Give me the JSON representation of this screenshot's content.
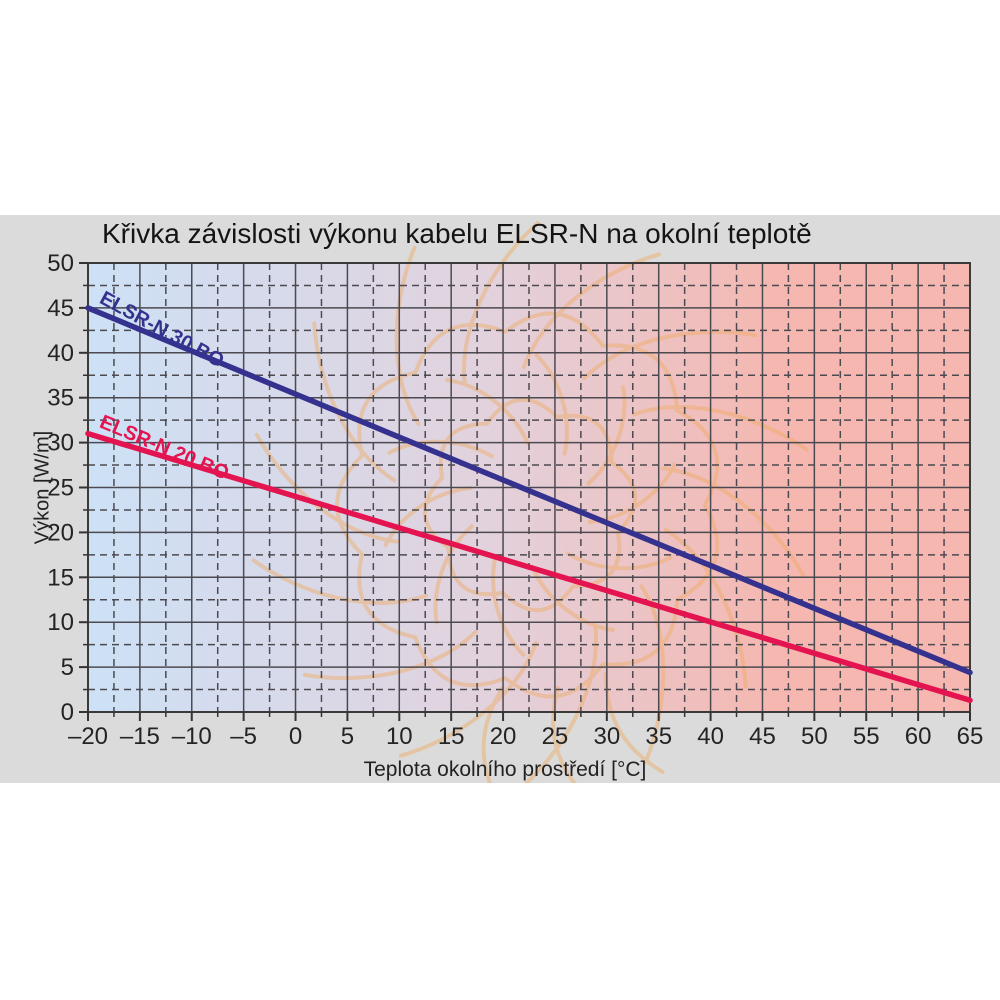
{
  "page": {
    "background": "#ffffff",
    "panel_background": "#dbdbdb"
  },
  "chart_data": {
    "type": "line",
    "title": "Křivka závislosti výkonu kabelu ELSR-N na okolní teplotě",
    "xlabel": "Teplota okolního prostředí [°C]",
    "ylabel": "Výkon [W/m]",
    "xlim": [
      -20,
      65
    ],
    "ylim": [
      0,
      50
    ],
    "x_ticks": [
      -20,
      -15,
      -10,
      -5,
      0,
      5,
      10,
      15,
      20,
      25,
      30,
      35,
      40,
      45,
      50,
      55,
      60,
      65
    ],
    "y_ticks": [
      0,
      5,
      10,
      15,
      20,
      25,
      30,
      35,
      40,
      45,
      50
    ],
    "minor_step": 2.5,
    "grid": "major solid + minor dashed, dark gray on gradient background",
    "legend_position": "inline rotated labels on curves",
    "plot_background_gradient": [
      "#cde1f6",
      "#e2d2dd",
      "#f5b7b0"
    ],
    "grid_color": "#4c4a50",
    "frame_color": "#3a3a3a",
    "watermark": "decorative sun/flame ornament outline",
    "watermark_color": "#eeab63",
    "series": [
      {
        "name": "ELSR-N 30 BO",
        "color": "#35318e",
        "x": [
          -20,
          10,
          65
        ],
        "values": [
          45,
          30.6,
          4.4
        ]
      },
      {
        "name": "ELSR-N 20 BO",
        "color": "#e31450",
        "x": [
          -20,
          10,
          65
        ],
        "values": [
          31,
          20.5,
          1.3
        ]
      }
    ]
  }
}
